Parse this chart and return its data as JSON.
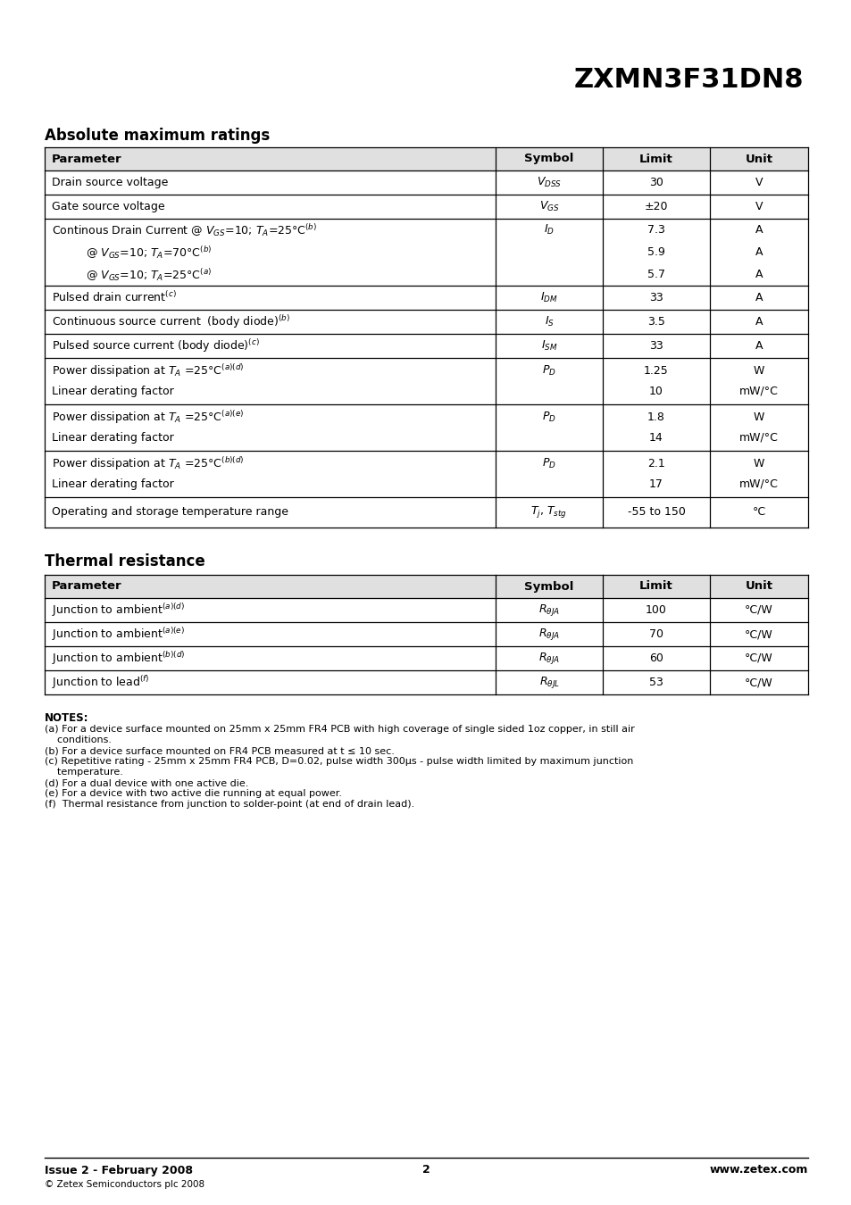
{
  "title": "ZXMN3F31DN8",
  "section1_heading": "Absolute maximum ratings",
  "section2_heading": "Thermal resistance",
  "table1_headers": [
    "Parameter",
    "Symbol",
    "Limit",
    "Unit"
  ],
  "table2_headers": [
    "Parameter",
    "Symbol",
    "Limit",
    "Unit"
  ],
  "notes_heading": "NOTES:",
  "notes": [
    "(a) For a device surface mounted on 25mm x 25mm FR4 PCB with high coverage of single sided 1oz copper, in still air",
    "    conditions.",
    "(b) For a device surface mounted on FR4 PCB measured at t ≤ 10 sec.",
    "(c) Repetitive rating - 25mm x 25mm FR4 PCB, D=0.02, pulse width 300μs - pulse width limited by maximum junction",
    "    temperature.",
    "(d) For a dual device with one active die.",
    "(e) For a device with two active die running at equal power.",
    "(f)  Thermal resistance from junction to solder-point (at end of drain lead)."
  ],
  "footer_left": "Issue 2 - February 2008",
  "footer_left2": "© Zetex Semiconductors plc 2008",
  "footer_center": "2",
  "footer_right": "www.zetex.com",
  "bg_color": "#ffffff"
}
